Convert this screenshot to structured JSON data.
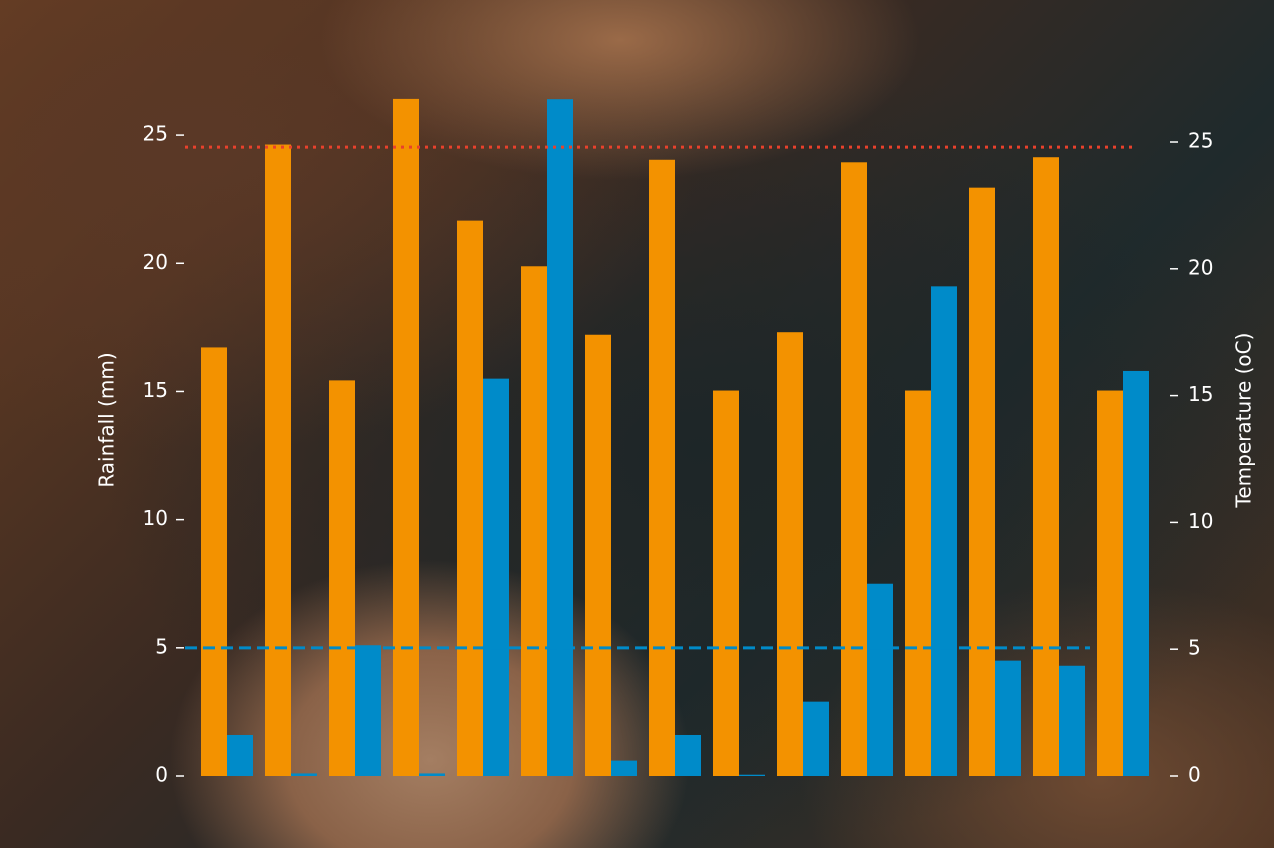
{
  "chart_data": {
    "type": "bar",
    "y_label": "Rainfall (mm)",
    "y2_label": "Temperature (oC)",
    "series": [
      {
        "color": "#f39200",
        "axis": "y2",
        "values": [
          16.9,
          24.9,
          15.6,
          26.7,
          21.9,
          20.1,
          17.4,
          24.3,
          15.2,
          17.5,
          24.2,
          15.2,
          23.2,
          24.4,
          15.2
        ]
      },
      {
        "color": "#008bc9",
        "axis": "y",
        "values": [
          1.6,
          0.1,
          5.1,
          0.1,
          15.5,
          26.4,
          0.6,
          1.6,
          0.05,
          2.9,
          7.5,
          19.1,
          4.5,
          4.3,
          15.8
        ]
      }
    ],
    "ylim": [
      0,
      27.5
    ],
    "yticks": [
      0,
      5,
      10,
      15,
      20,
      25
    ],
    "y2lim": [
      0,
      27.8
    ],
    "y2ticks": [
      0,
      5,
      10,
      15,
      20,
      25
    ],
    "hlines": [
      {
        "value": 5,
        "axis": "y",
        "color": "#008bc9",
        "style": "dashed"
      },
      {
        "value": 24.8,
        "axis": "y2",
        "color": "#e8412c",
        "style": "dotted"
      }
    ]
  }
}
